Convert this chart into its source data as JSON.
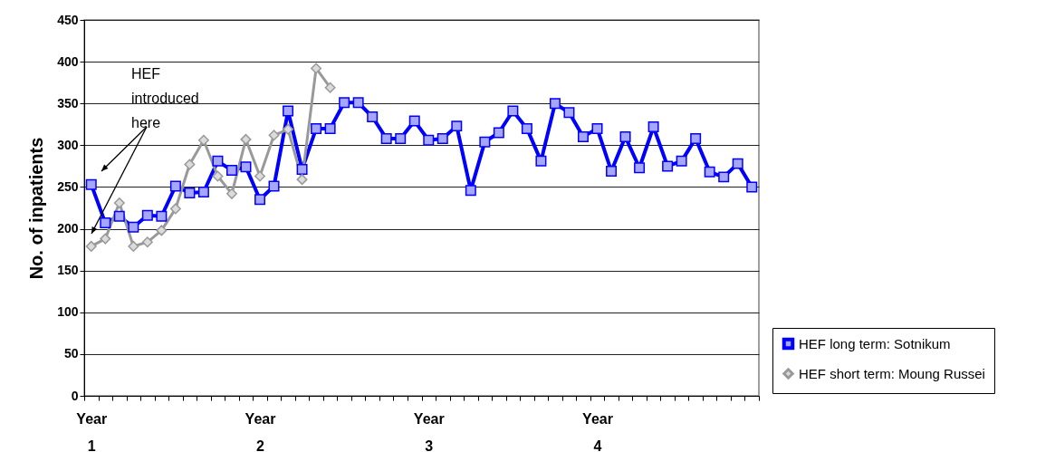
{
  "chart_data": {
    "type": "line",
    "ylabel": "No. of inpatients",
    "categories": [
      "Year 1",
      null,
      null,
      null,
      null,
      null,
      null,
      null,
      null,
      null,
      null,
      null,
      "Year 2",
      null,
      null,
      null,
      null,
      null,
      null,
      null,
      null,
      null,
      null,
      null,
      "Year 3",
      null,
      null,
      null,
      null,
      null,
      null,
      null,
      null,
      null,
      null,
      null,
      "Year 4",
      null,
      null,
      null,
      null,
      null,
      null,
      null,
      null,
      null,
      null,
      null
    ],
    "series": [
      {
        "name": "HEF long term: Sotnikum",
        "color": "#0000ff",
        "marker": "square",
        "values": [
          253,
          207,
          215,
          202,
          216,
          215,
          251,
          243,
          244,
          281,
          270,
          274,
          235,
          251,
          341,
          271,
          320,
          320,
          351,
          351,
          334,
          308,
          308,
          329,
          306,
          308,
          323,
          246,
          304,
          315,
          341,
          320,
          281,
          350,
          339,
          310,
          320,
          269,
          310,
          273,
          322,
          275,
          281,
          308,
          268,
          262,
          278,
          250
        ]
      },
      {
        "name": "HEF short term: Moung Russei",
        "color": "#999999",
        "marker": "diamond",
        "values": [
          179,
          188,
          231,
          179,
          184,
          198,
          224,
          277,
          306,
          263,
          242,
          307,
          263,
          312,
          319,
          259,
          392,
          369,
          null,
          null,
          null,
          null,
          null,
          null,
          null,
          null,
          null,
          null,
          null,
          null,
          null,
          null,
          null,
          null,
          null,
          null,
          null,
          null,
          null,
          null,
          null,
          null,
          null,
          null,
          null,
          null,
          null,
          null
        ]
      }
    ],
    "ylim": [
      0,
      450
    ],
    "yticks": [
      0,
      50,
      100,
      150,
      200,
      250,
      300,
      350,
      400,
      450
    ],
    "grid": "y",
    "legend": "bottom right",
    "annotations": [
      "HEF introduced here"
    ]
  }
}
